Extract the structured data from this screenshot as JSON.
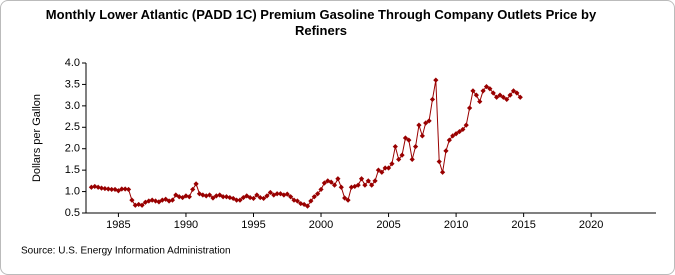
{
  "chart_data": {
    "type": "line",
    "title": "Monthly Lower Atlantic (PADD 1C) Premium Gasoline Through Company Outlets Price by Refiners",
    "y_label": "Dollars per Gallon",
    "source": "Source: U.S. Energy Information Administration",
    "xlim": [
      1982.6,
      2024.8
    ],
    "xticks": [
      1985,
      1990,
      1995,
      2000,
      2005,
      2010,
      2015,
      2020
    ],
    "ylim": [
      0.5,
      4.0
    ],
    "yticks": [
      {
        "value": 0.5,
        "label": "0.5"
      },
      {
        "value": 1,
        "label": "1.0"
      },
      1.5,
      {
        "value": 2,
        "label": "2.0"
      },
      2.5,
      {
        "value": 3,
        "label": "3.0"
      },
      3.5,
      {
        "value": 4,
        "label": "4.0"
      }
    ],
    "grid": false,
    "series": [
      {
        "color": "#990000",
        "x": [
          1983,
          1983.25,
          1983.5,
          1983.75,
          1984,
          1984.25,
          1984.5,
          1984.75,
          1985,
          1985.25,
          1985.5,
          1985.75,
          1986,
          1986.25,
          1986.5,
          1986.75,
          1987,
          1987.25,
          1987.5,
          1987.75,
          1988,
          1988.25,
          1988.5,
          1988.75,
          1989,
          1989.25,
          1989.5,
          1989.75,
          1990,
          1990.25,
          1990.5,
          1990.75,
          1991,
          1991.25,
          1991.5,
          1991.75,
          1992,
          1992.25,
          1992.5,
          1992.75,
          1993,
          1993.25,
          1993.5,
          1993.75,
          1994,
          1994.25,
          1994.5,
          1994.75,
          1995,
          1995.25,
          1995.5,
          1995.75,
          1996,
          1996.25,
          1996.5,
          1996.75,
          1997,
          1997.25,
          1997.5,
          1997.75,
          1998,
          1998.25,
          1998.5,
          1998.75,
          1999,
          1999.25,
          1999.5,
          1999.75,
          2000,
          2000.25,
          2000.5,
          2000.75,
          2001,
          2001.25,
          2001.5,
          2001.75,
          2002,
          2002.25,
          2002.5,
          2002.75,
          2003,
          2003.25,
          2003.5,
          2003.75,
          2004,
          2004.25,
          2004.5,
          2004.75,
          2005,
          2005.25,
          2005.5,
          2005.75,
          2006,
          2006.25,
          2006.5,
          2006.75,
          2007,
          2007.25,
          2007.5,
          2007.75,
          2008,
          2008.25,
          2008.5,
          2008.75,
          2009,
          2009.25,
          2009.5,
          2009.75,
          2010,
          2010.25,
          2010.5,
          2010.75,
          2011,
          2011.25,
          2011.5,
          2011.75,
          2012,
          2012.25,
          2012.5,
          2012.75,
          2013,
          2013.25,
          2013.5,
          2013.75,
          2014,
          2014.25,
          2014.5,
          2014.75
        ],
        "values": [
          1.1,
          1.12,
          1.1,
          1.08,
          1.07,
          1.06,
          1.05,
          1.05,
          1.02,
          1.06,
          1.06,
          1.05,
          0.8,
          0.68,
          0.7,
          0.68,
          0.75,
          0.78,
          0.8,
          0.78,
          0.76,
          0.8,
          0.82,
          0.78,
          0.8,
          0.92,
          0.88,
          0.86,
          0.9,
          0.88,
          1.05,
          1.18,
          0.95,
          0.92,
          0.9,
          0.92,
          0.85,
          0.9,
          0.92,
          0.88,
          0.88,
          0.86,
          0.84,
          0.8,
          0.8,
          0.86,
          0.9,
          0.86,
          0.84,
          0.92,
          0.86,
          0.84,
          0.9,
          0.98,
          0.92,
          0.95,
          0.95,
          0.92,
          0.94,
          0.88,
          0.8,
          0.78,
          0.72,
          0.7,
          0.66,
          0.78,
          0.88,
          0.95,
          1.05,
          1.2,
          1.25,
          1.22,
          1.15,
          1.3,
          1.1,
          0.85,
          0.8,
          1.1,
          1.12,
          1.15,
          1.3,
          1.15,
          1.25,
          1.15,
          1.25,
          1.5,
          1.45,
          1.55,
          1.55,
          1.65,
          2.05,
          1.75,
          1.85,
          2.25,
          2.2,
          1.75,
          2.05,
          2.55,
          2.3,
          2.6,
          2.65,
          3.15,
          3.6,
          1.7,
          1.45,
          1.95,
          2.2,
          2.3,
          2.35,
          2.4,
          2.45,
          2.55,
          2.95,
          3.35,
          3.25,
          3.1,
          3.35,
          3.45,
          3.4,
          3.3,
          3.2,
          3.25,
          3.2,
          3.15,
          3.25,
          3.35,
          3.3,
          3.2
        ]
      }
    ]
  }
}
